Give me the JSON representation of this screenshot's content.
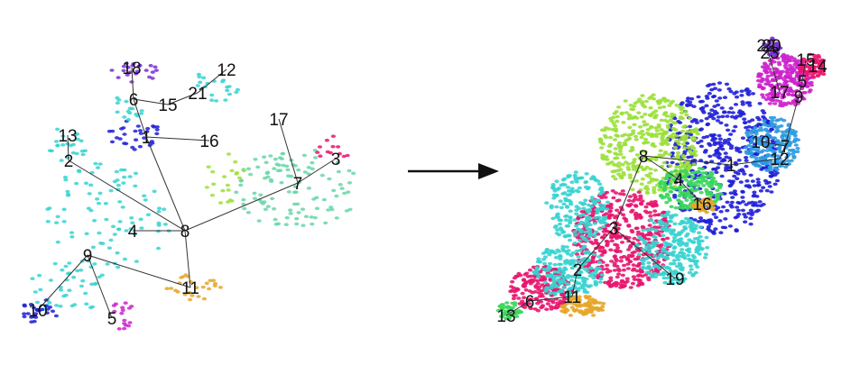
{
  "figure": {
    "left_panel": {
      "nodes": [
        {
          "id": "18",
          "label": "18"
        },
        {
          "id": "12",
          "label": "12"
        },
        {
          "id": "21",
          "label": "21"
        },
        {
          "id": "6",
          "label": "6"
        },
        {
          "id": "15",
          "label": "15"
        },
        {
          "id": "17",
          "label": "17"
        },
        {
          "id": "13",
          "label": "13"
        },
        {
          "id": "1",
          "label": "1"
        },
        {
          "id": "16",
          "label": "16"
        },
        {
          "id": "2",
          "label": "2"
        },
        {
          "id": "3",
          "label": "3"
        },
        {
          "id": "7",
          "label": "7"
        },
        {
          "id": "4",
          "label": "4"
        },
        {
          "id": "8",
          "label": "8"
        },
        {
          "id": "9",
          "label": "9"
        },
        {
          "id": "11",
          "label": "11"
        },
        {
          "id": "10",
          "label": "10"
        },
        {
          "id": "5",
          "label": "5"
        }
      ],
      "edges": [
        [
          "18",
          "6"
        ],
        [
          "6",
          "15"
        ],
        [
          "15",
          "21"
        ],
        [
          "21",
          "12"
        ],
        [
          "6",
          "1"
        ],
        [
          "1",
          "16"
        ],
        [
          "1",
          "8"
        ],
        [
          "13",
          "2"
        ],
        [
          "2",
          "8"
        ],
        [
          "17",
          "7"
        ],
        [
          "7",
          "3"
        ],
        [
          "7",
          "8"
        ],
        [
          "4",
          "8"
        ],
        [
          "8",
          "11"
        ],
        [
          "9",
          "11"
        ],
        [
          "9",
          "10"
        ],
        [
          "9",
          "5"
        ]
      ]
    },
    "right_panel": {
      "nodes": [
        {
          "id": "22",
          "label": "22"
        },
        {
          "id": "20",
          "label": "20"
        },
        {
          "id": "23",
          "label": "23"
        },
        {
          "id": "15",
          "label": "15"
        },
        {
          "id": "14",
          "label": "14"
        },
        {
          "id": "5",
          "label": "5"
        },
        {
          "id": "17",
          "label": "17"
        },
        {
          "id": "9",
          "label": "9"
        },
        {
          "id": "10",
          "label": "10"
        },
        {
          "id": "7",
          "label": "7"
        },
        {
          "id": "12",
          "label": "12"
        },
        {
          "id": "1",
          "label": "1"
        },
        {
          "id": "8",
          "label": "8"
        },
        {
          "id": "4",
          "label": "4"
        },
        {
          "id": "16",
          "label": "16"
        },
        {
          "id": "3",
          "label": "3"
        },
        {
          "id": "2",
          "label": "2"
        },
        {
          "id": "19",
          "label": "19"
        },
        {
          "id": "11",
          "label": "11"
        },
        {
          "id": "6",
          "label": "6"
        },
        {
          "id": "13",
          "label": "13"
        }
      ],
      "edges": [
        [
          "22",
          "17"
        ],
        [
          "15",
          "5"
        ],
        [
          "5",
          "9"
        ],
        [
          "9",
          "7"
        ],
        [
          "10",
          "7"
        ],
        [
          "7",
          "12"
        ],
        [
          "12",
          "1"
        ],
        [
          "1",
          "8"
        ],
        [
          "8",
          "4"
        ],
        [
          "4",
          "16"
        ],
        [
          "8",
          "3"
        ],
        [
          "3",
          "2"
        ],
        [
          "3",
          "19"
        ],
        [
          "2",
          "11"
        ],
        [
          "11",
          "6"
        ],
        [
          "6",
          "13"
        ]
      ]
    },
    "palette": [
      "#e8156e",
      "#36d3d0",
      "#1f1fd8",
      "#3ad65c",
      "#9be03a",
      "#e5a62a",
      "#cc22cc",
      "#7a2fd6",
      "#2f9be0",
      "#68d6a8"
    ],
    "arrow_color": "#111111"
  }
}
